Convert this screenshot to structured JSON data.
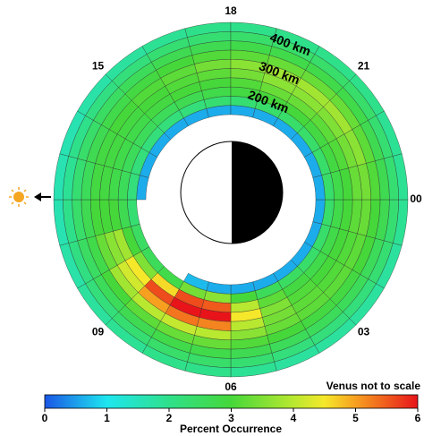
{
  "chart_data": {
    "type": "polar_heatmap",
    "colorbar_title": "Percent Occurrence",
    "note": "Venus not to scale",
    "theta_lim": [
      0,
      24
    ],
    "theta_ticks": [
      18,
      21,
      {
        "value": 0,
        "label": "00"
      },
      {
        "value": 3,
        "label": "03"
      },
      {
        "value": 6,
        "label": "06"
      },
      {
        "value": 9,
        "label": "09"
      },
      15
    ],
    "rlim": [
      150,
      450
    ],
    "r_bins": [
      150,
      180,
      210,
      240,
      270,
      300,
      330,
      360,
      390,
      420,
      450
    ],
    "theta_bins": [
      0,
      1,
      2,
      3,
      4,
      5,
      6,
      7,
      8,
      9,
      10,
      11,
      12,
      13,
      14,
      15,
      16,
      17,
      18,
      19,
      20,
      21,
      22,
      23,
      24
    ],
    "annotations": [
      {
        "value": 200,
        "label": "200 km"
      },
      {
        "value": 300,
        "label": "300 km"
      },
      {
        "value": 400,
        "label": "400 km"
      }
    ],
    "values": [
      [
        0.6,
        0.6,
        0.6,
        0.6,
        0.6,
        0.6,
        0.6,
        0.7,
        null,
        null,
        null,
        null,
        0.6,
        0.6,
        0.6,
        0.6,
        0.6,
        0.6,
        0.6,
        0.6,
        0.6,
        0.6,
        0.6,
        0.6
      ],
      [
        2.4,
        2.4,
        2.4,
        2.5,
        2.6,
        3,
        3.6,
        3.4,
        2.8,
        2.6,
        2.5,
        2.3,
        2.2,
        2.2,
        2.2,
        2.2,
        2.2,
        2.3,
        2.3,
        2.4,
        2.4,
        2.4,
        2.4,
        2.4
      ],
      [
        2.8,
        2.8,
        2.8,
        2.9,
        3.2,
        4,
        5.5,
        5.6,
        4.6,
        3.5,
        3,
        2.7,
        2.6,
        2.6,
        2.6,
        2.6,
        2.7,
        2.8,
        2.9,
        3,
        3,
        2.9,
        2.9,
        2.8
      ],
      [
        3,
        3,
        3,
        3.1,
        3.5,
        4.5,
        6,
        6,
        5.6,
        4.5,
        3.8,
        3,
        2.8,
        2.8,
        2.8,
        2.9,
        3,
        3,
        3.1,
        3.3,
        3.3,
        3.2,
        3.1,
        3
      ],
      [
        3.2,
        3.1,
        3.1,
        3.2,
        3.4,
        4,
        5.2,
        5.3,
        5,
        4.2,
        3.6,
        3,
        2.9,
        2.9,
        2.9,
        3,
        3.1,
        3.2,
        3.4,
        3.6,
        3.6,
        3.5,
        3.4,
        3.3
      ],
      [
        3.3,
        3.2,
        3.2,
        3.2,
        3.3,
        3.6,
        4,
        4.1,
        4,
        3.8,
        3.3,
        3,
        2.9,
        2.9,
        3,
        3.1,
        3.2,
        3.4,
        3.6,
        3.8,
        3.8,
        3.8,
        3.6,
        3.4
      ],
      [
        3,
        3,
        2.9,
        2.9,
        3,
        3.1,
        3.3,
        3.3,
        3.2,
        3,
        2.8,
        2.7,
        2.6,
        2.7,
        2.8,
        2.9,
        3,
        3.1,
        3.2,
        3.3,
        3.3,
        3.3,
        3.2,
        3.1
      ],
      [
        2.7,
        2.6,
        2.6,
        2.6,
        2.6,
        2.7,
        2.8,
        2.8,
        2.7,
        2.6,
        2.5,
        2.4,
        2.3,
        2.4,
        2.5,
        2.6,
        2.7,
        2.7,
        2.8,
        2.8,
        2.8,
        2.8,
        2.7,
        2.7
      ],
      [
        2.3,
        2.3,
        2.2,
        2.2,
        2.2,
        2.3,
        2.4,
        2.4,
        2.3,
        2.2,
        2.1,
        2,
        1.9,
        2,
        2.1,
        2.2,
        2.3,
        2.3,
        2.4,
        2.4,
        2.4,
        2.4,
        2.3,
        2.3
      ],
      [
        1.9,
        1.8,
        1.8,
        1.8,
        1.8,
        1.9,
        2,
        2,
        1.9,
        1.8,
        1.7,
        1.6,
        1.6,
        1.6,
        1.7,
        1.8,
        1.9,
        2,
        2,
        2,
        2,
        2,
        1.9,
        1.9
      ]
    ],
    "clim": [
      0,
      6
    ],
    "cbar_ticks": [
      0,
      1,
      2,
      3,
      4,
      5,
      6
    ],
    "colorscale": [
      {
        "value": 0,
        "color": "#1a56e6"
      },
      {
        "value": 1,
        "color": "#1ee6ef"
      },
      {
        "value": 2,
        "color": "#2fe08a"
      },
      {
        "value": 3,
        "color": "#46d83a"
      },
      {
        "value": 4,
        "color": "#b8e830"
      },
      {
        "value": 4.5,
        "color": "#f5e82a"
      },
      {
        "value": 5,
        "color": "#f7a020"
      },
      {
        "value": 6,
        "color": "#e8141a"
      }
    ]
  }
}
